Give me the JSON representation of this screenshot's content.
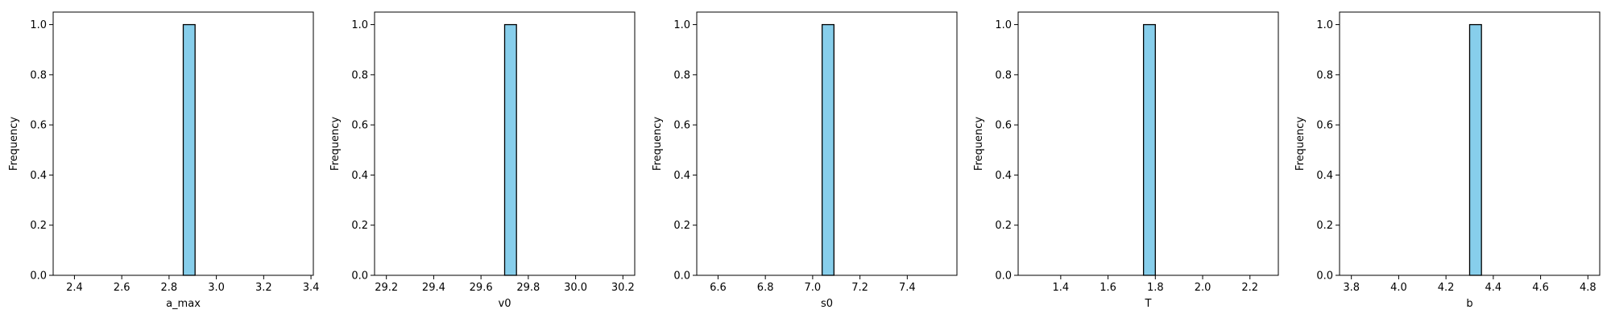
{
  "figure": {
    "background": "#ffffff"
  },
  "style": {
    "bar_fill": "#87ceeb",
    "bar_edge": "#000000",
    "axes_color": "#000000"
  },
  "chart_data": [
    {
      "type": "bar",
      "xlabel": "a_max",
      "ylabel": "Frequency",
      "xlim": [
        2.31,
        3.41
      ],
      "ylim": [
        0,
        1.05
      ],
      "xticks": [
        2.4,
        2.6,
        2.8,
        3.0,
        3.2,
        3.4
      ],
      "xtick_labels": [
        "2.4",
        "2.6",
        "2.8",
        "3.0",
        "3.2",
        "3.4"
      ],
      "yticks": [
        0.0,
        0.2,
        0.4,
        0.6,
        0.8,
        1.0
      ],
      "ytick_labels": [
        "0.0",
        "0.2",
        "0.4",
        "0.6",
        "0.8",
        "1.0"
      ],
      "bins": [
        {
          "x0": 2.86,
          "x1": 2.91,
          "count": 1
        }
      ]
    },
    {
      "type": "bar",
      "xlabel": "v0",
      "ylabel": "Frequency",
      "xlim": [
        29.15,
        30.25
      ],
      "ylim": [
        0,
        1.05
      ],
      "xticks": [
        29.2,
        29.4,
        29.6,
        29.8,
        30.0,
        30.2
      ],
      "xtick_labels": [
        "29.2",
        "29.4",
        "29.6",
        "29.8",
        "30.0",
        "30.2"
      ],
      "yticks": [
        0.0,
        0.2,
        0.4,
        0.6,
        0.8,
        1.0
      ],
      "ytick_labels": [
        "0.0",
        "0.2",
        "0.4",
        "0.6",
        "0.8",
        "1.0"
      ],
      "bins": [
        {
          "x0": 29.7,
          "x1": 29.75,
          "count": 1
        }
      ]
    },
    {
      "type": "bar",
      "xlabel": "s0",
      "ylabel": "Frequency",
      "xlim": [
        6.51,
        7.61
      ],
      "ylim": [
        0,
        1.05
      ],
      "xticks": [
        6.6,
        6.8,
        7.0,
        7.2,
        7.4
      ],
      "xtick_labels": [
        "6.6",
        "6.8",
        "7.0",
        "7.2",
        "7.4"
      ],
      "yticks": [
        0.0,
        0.2,
        0.4,
        0.6,
        0.8,
        1.0
      ],
      "ytick_labels": [
        "0.0",
        "0.2",
        "0.4",
        "0.6",
        "0.8",
        "1.0"
      ],
      "bins": [
        {
          "x0": 7.04,
          "x1": 7.09,
          "count": 1
        }
      ]
    },
    {
      "type": "bar",
      "xlabel": "T",
      "ylabel": "Frequency",
      "xlim": [
        1.22,
        2.32
      ],
      "ylim": [
        0,
        1.05
      ],
      "xticks": [
        1.4,
        1.6,
        1.8,
        2.0,
        2.2
      ],
      "xtick_labels": [
        "1.4",
        "1.6",
        "1.8",
        "2.0",
        "2.2"
      ],
      "yticks": [
        0.0,
        0.2,
        0.4,
        0.6,
        0.8,
        1.0
      ],
      "ytick_labels": [
        "0.0",
        "0.2",
        "0.4",
        "0.6",
        "0.8",
        "1.0"
      ],
      "bins": [
        {
          "x0": 1.75,
          "x1": 1.8,
          "count": 1
        }
      ]
    },
    {
      "type": "bar",
      "xlabel": "b",
      "ylabel": "Frequency",
      "xlim": [
        3.75,
        4.85
      ],
      "ylim": [
        0,
        1.05
      ],
      "xticks": [
        3.8,
        4.0,
        4.2,
        4.4,
        4.6,
        4.8
      ],
      "xtick_labels": [
        "3.8",
        "4.0",
        "4.2",
        "4.4",
        "4.6",
        "4.8"
      ],
      "yticks": [
        0.0,
        0.2,
        0.4,
        0.6,
        0.8,
        1.0
      ],
      "ytick_labels": [
        "0.0",
        "0.2",
        "0.4",
        "0.6",
        "0.8",
        "1.0"
      ],
      "bins": [
        {
          "x0": 4.3,
          "x1": 4.35,
          "count": 1
        }
      ]
    }
  ]
}
